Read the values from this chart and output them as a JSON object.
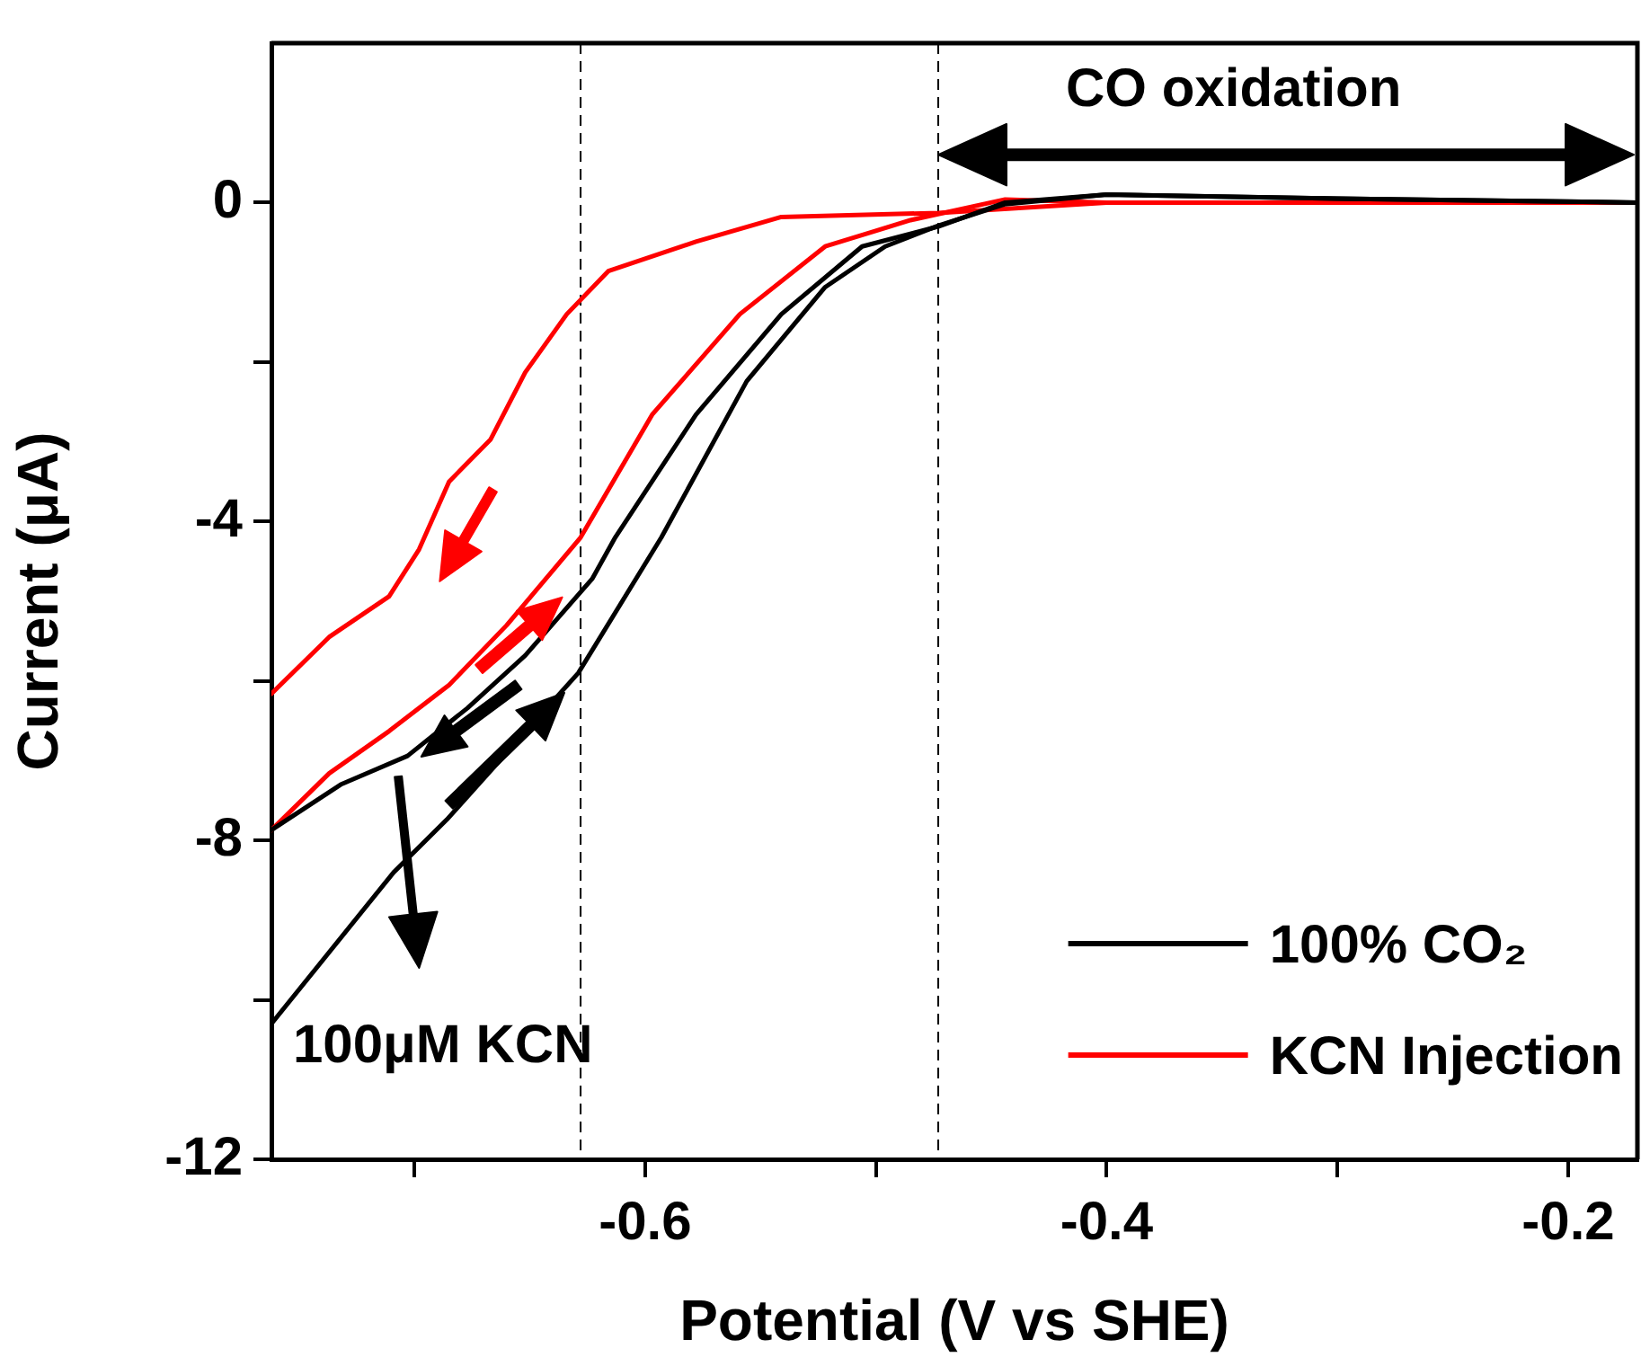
{
  "chart_data": {
    "type": "line",
    "xlabel": "Potential (V vs SHE)",
    "ylabel": "Current (μA)",
    "xlim": [
      -0.762,
      -0.17
    ],
    "xticks": [
      {
        "value": -0.7,
        "label": null
      },
      -0.6,
      {
        "value": -0.5,
        "label": null
      },
      -0.4,
      {
        "value": -0.3,
        "label": null
      },
      -0.2
    ],
    "ylim": [
      -12,
      2
    ],
    "yticks": [
      -12,
      {
        "value": -10,
        "label": null
      },
      -8,
      {
        "value": -6,
        "label": null
      },
      -4,
      {
        "value": -2,
        "label": null
      },
      0
    ],
    "grid": false,
    "legend": "bottom right",
    "marker": "none",
    "line_style": "solid",
    "series": [
      {
        "name": "100% CO₂",
        "color": "#000000",
        "x": [
          -0.762,
          -0.732,
          -0.703,
          -0.677,
          -0.652,
          -0.623,
          -0.613,
          -0.578,
          -0.541,
          -0.506,
          -0.473,
          -0.444,
          -0.4,
          -0.3,
          -0.17
        ],
        "values": [
          -7.87,
          -7.3,
          -6.94,
          -6.34,
          -5.68,
          -4.72,
          -4.2,
          -2.66,
          -1.4,
          -0.55,
          -0.3,
          0,
          0.1,
          0.05,
          0
        ]
      },
      {
        "color": "#000000",
        "x": [
          -0.762,
          -0.709,
          -0.686,
          -0.629,
          -0.593,
          -0.556,
          -0.522,
          -0.496,
          -0.473,
          -0.444,
          -0.4,
          -0.3,
          -0.17
        ],
        "values": [
          -10.3,
          -8.4,
          -7.74,
          -5.9,
          -4.2,
          -2.24,
          -1.06,
          -0.55,
          -0.29,
          -0.02,
          0.1,
          0.05,
          0
        ]
      },
      {
        "name": "KCN Injection",
        "color": "#ff0000",
        "x": [
          -0.762,
          -0.737,
          -0.711,
          -0.698,
          -0.685,
          -0.667,
          -0.652,
          -0.634,
          -0.616,
          -0.578,
          -0.541,
          -0.473,
          -0.4,
          -0.3,
          -0.17
        ],
        "values": [
          -6.16,
          -5.45,
          -4.94,
          -4.35,
          -3.5,
          -2.97,
          -2.13,
          -1.4,
          -0.86,
          -0.49,
          -0.18,
          -0.13,
          0,
          0,
          0
        ]
      },
      {
        "color": "#ff0000",
        "x": [
          -0.762,
          -0.737,
          -0.711,
          -0.685,
          -0.66,
          -0.628,
          -0.597,
          -0.559,
          -0.522,
          -0.485,
          -0.444,
          -0.4,
          -0.3,
          -0.17
        ],
        "values": [
          -7.87,
          -7.16,
          -6.63,
          -6.05,
          -5.3,
          -4.2,
          -2.66,
          -1.4,
          -0.55,
          -0.22,
          0.04,
          0,
          0,
          0
        ]
      }
    ],
    "ref_lines": [
      {
        "axis": "x",
        "value": -0.628,
        "color": "#000000",
        "line_style": "dashed"
      },
      {
        "axis": "x",
        "value": -0.473,
        "color": "#000000",
        "line_style": "dashed"
      }
    ],
    "annotations": [
      "CO oxidation",
      "100μM KCN"
    ]
  }
}
